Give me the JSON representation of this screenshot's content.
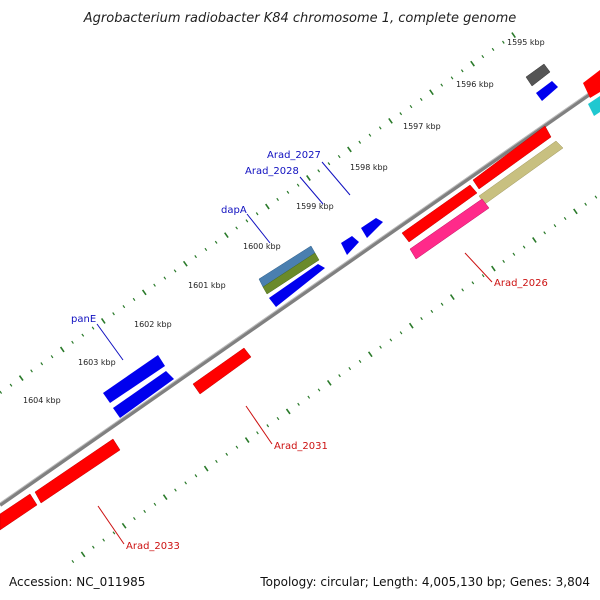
{
  "title": "Agrobacterium radiobacter K84 chromosome 1, complete genome",
  "footer": {
    "accession": "Accession: NC_011985",
    "summary": "Topology: circular; Length: 4,005,130 bp; Genes: 3,804"
  },
  "kbp_labels": [
    "1595 kbp",
    "1596 kbp",
    "1597 kbp",
    "1598 kbp",
    "1599 kbp",
    "1600 kbp",
    "1601 kbp",
    "1602 kbp",
    "1603 kbp",
    "1604 kbp"
  ],
  "gene_labels": {
    "arad_2027": "Arad_2027",
    "arad_2028": "Arad_2028",
    "dapA": "dapA",
    "panE": "panE",
    "arad_2026": "Arad_2026",
    "arad_2031": "Arad_2031",
    "arad_2033": "Arad_2033"
  },
  "colors": {
    "backbone": "#808080",
    "red": "#ff0000",
    "blue": "#0000ee",
    "gray": "#555555",
    "khaki": "#c8c080",
    "magenta": "#ff2a8a",
    "steelblue": "#4a7fb0",
    "olive": "#6a8a2a",
    "cyan": "#20c8d0",
    "tick_green": "#2a7a2a"
  }
}
